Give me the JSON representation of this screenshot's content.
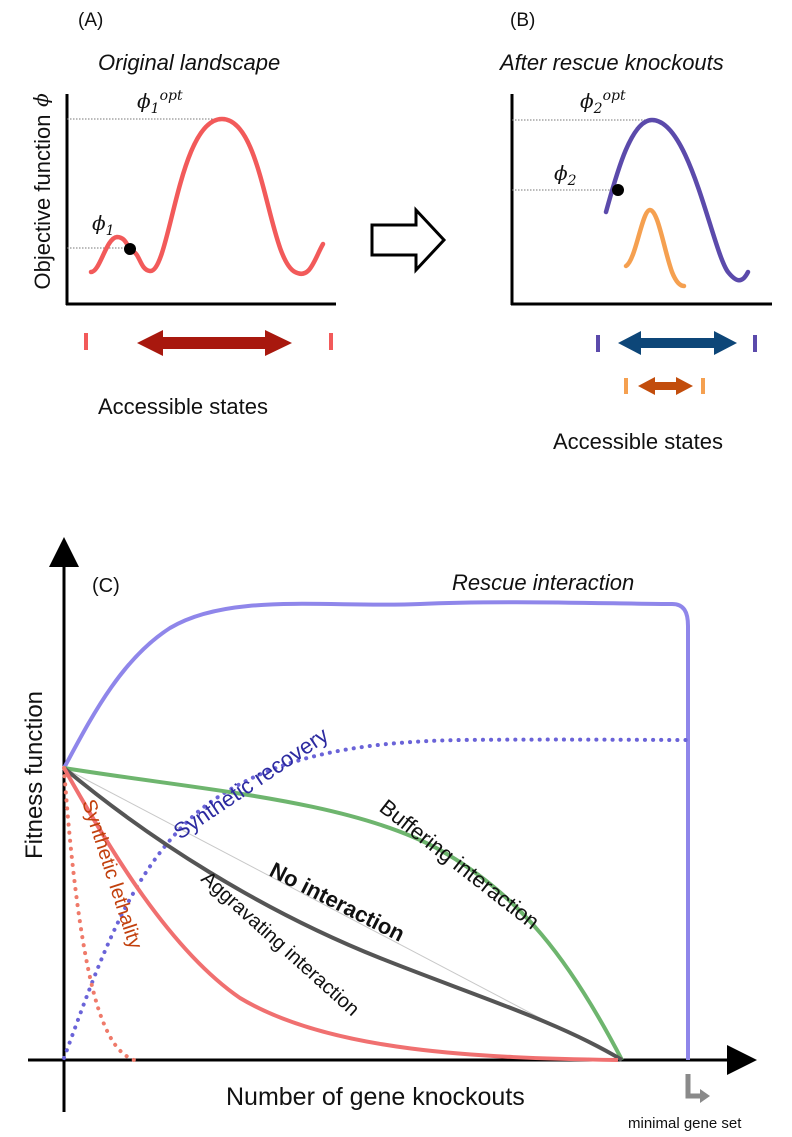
{
  "panel_a": {
    "tag": "(A)",
    "title": "Original landscape",
    "ylabel": "Objective function",
    "phi_symbol": "ϕ",
    "phi_opt_base": "ϕ",
    "phi_opt_sub": "1",
    "phi_opt_sup": "opt",
    "phi_point_base": "ϕ",
    "phi_point_sub": "1",
    "xlabel": "Accessible states"
  },
  "panel_b": {
    "tag": "(B)",
    "title": "After rescue knockouts",
    "phi_opt_base": "ϕ",
    "phi_opt_sub": "2",
    "phi_opt_sup": "opt",
    "phi_point_base": "ϕ",
    "phi_point_sub": "2",
    "xlabel": "Accessible states"
  },
  "panel_c": {
    "tag": "(C)",
    "ylabel": "Fitness function",
    "xlabel": "Number of gene knockouts",
    "minimal_gene_set": "minimal gene set",
    "curves": {
      "rescue": "Rescue interaction",
      "synthetic_recovery": "Synthetic recovery",
      "buffering": "Buffering interaction",
      "no_interaction": "No interaction",
      "aggravating": "Aggravating interaction",
      "synthetic_lethality": "Synthetic lethality"
    }
  },
  "colors": {
    "red": "#f25a5a",
    "dark_red_arrow": "#a8180e",
    "purple": "#5b4aab",
    "orange": "#f5a050",
    "orange_arrow": "#c24d0c",
    "blue_arrow": "#0d4678",
    "rescue": "#8f86ea",
    "synthetic_recovery": "#6a63d8",
    "buffering": "#6eb56e",
    "no_interaction": "#555555",
    "aggravating": "#f07070",
    "synthetic_lethality": "#ef7a6a",
    "recovery_text": "#2c2aa0",
    "lethality_text": "#c2400d"
  }
}
